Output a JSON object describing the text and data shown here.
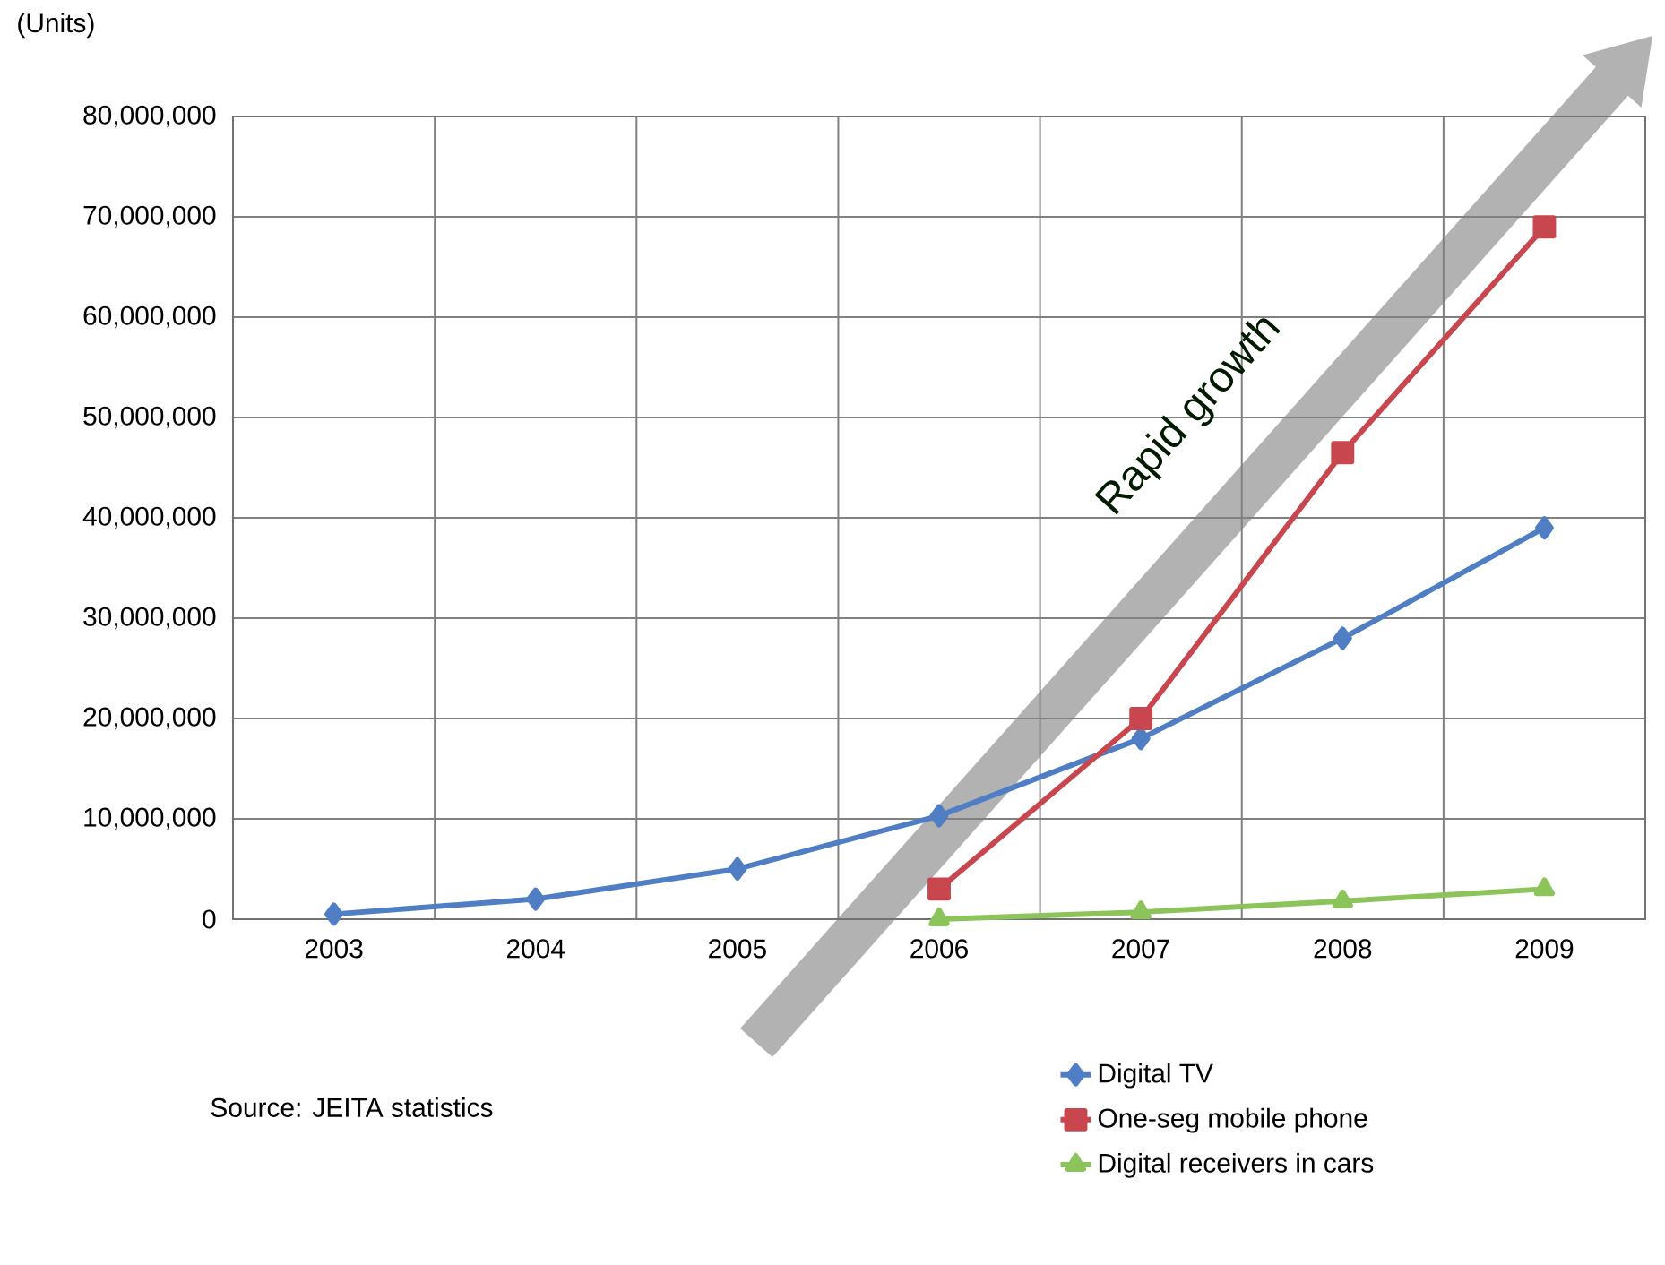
{
  "chart_data": {
    "type": "line",
    "ylabel": "(Units)",
    "categories": [
      "2003",
      "2004",
      "2005",
      "2006",
      "2007",
      "2008",
      "2009"
    ],
    "series": [
      {
        "name": "Digital TV",
        "color": "#4f7ec4",
        "marker": "diamond",
        "values": [
          500000,
          2000000,
          5000000,
          10300000,
          18000000,
          28000000,
          39000000
        ]
      },
      {
        "name": "One-seg mobile phone",
        "color": "#c8474f",
        "marker": "square",
        "values": [
          null,
          null,
          null,
          3000000,
          20000000,
          46500000,
          69000000
        ]
      },
      {
        "name": "Digital receivers in cars",
        "color": "#8cc35a",
        "marker": "triangle",
        "values": [
          null,
          null,
          null,
          0,
          700000,
          1800000,
          3000000
        ]
      }
    ],
    "ylim": [
      0,
      80000000
    ],
    "yticks": [
      0,
      {
        "value": 10000000,
        "label": "10,000,000"
      },
      {
        "value": 20000000,
        "label": "20,000,000"
      },
      {
        "value": 30000000,
        "label": "30,000,000"
      },
      {
        "value": 40000000,
        "label": "40,000,000"
      },
      {
        "value": 50000000,
        "label": "50,000,000"
      },
      {
        "value": 60000000,
        "label": "60,000,000"
      },
      {
        "value": 70000000,
        "label": "70,000,000"
      },
      {
        "value": 80000000,
        "label": "80,000,000"
      }
    ],
    "grid": true,
    "legend": "bottom right",
    "annotations": [
      "Rapid growth",
      "Source: JEITA statistics"
    ]
  }
}
